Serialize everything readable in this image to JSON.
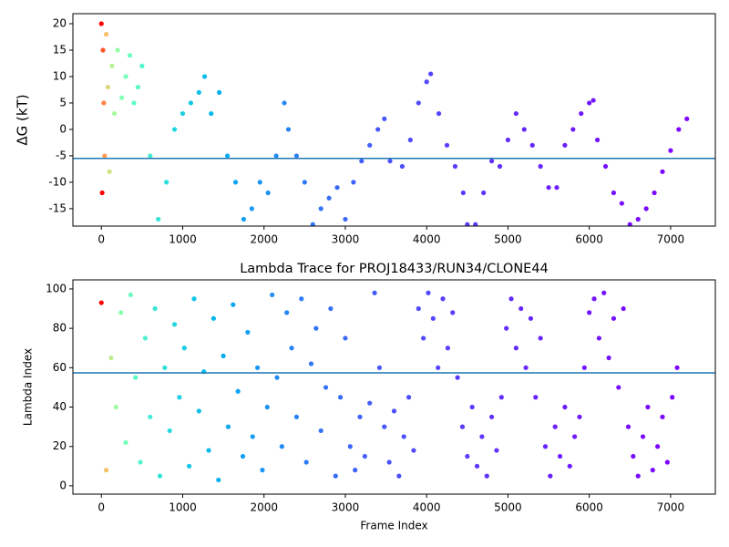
{
  "chart_data": [
    {
      "type": "scatter",
      "ylabel": "ΔG (kT)",
      "colormap": "rainbow_r",
      "color_norm": "log",
      "clim": [
        10,
        7200
      ],
      "xlim": [
        -350,
        7550
      ],
      "ylim": [
        -18.3,
        21.9
      ],
      "xticks": [
        0,
        1000,
        2000,
        3000,
        4000,
        5000,
        6000,
        7000
      ],
      "yticks": [
        -15,
        -10,
        -5,
        0,
        5,
        10,
        15,
        20
      ],
      "hline": -5.5,
      "hline_color": "#1f77b4",
      "x": [
        0,
        10,
        20,
        30,
        40,
        60,
        80,
        100,
        130,
        160,
        200,
        250,
        300,
        350,
        400,
        450,
        500,
        600,
        700,
        800,
        900,
        1000,
        1100,
        1200,
        1270,
        1350,
        1450,
        1550,
        1650,
        1750,
        1850,
        1950,
        2050,
        2150,
        2250,
        2300,
        2400,
        2500,
        2600,
        2700,
        2800,
        2900,
        3000,
        3100,
        3200,
        3300,
        3400,
        3480,
        3550,
        3700,
        3800,
        3900,
        4000,
        4050,
        4150,
        4250,
        4350,
        4450,
        4500,
        4600,
        4700,
        4800,
        4900,
        5000,
        5100,
        5200,
        5300,
        5400,
        5500,
        5600,
        5700,
        5800,
        5900,
        6000,
        6050,
        6100,
        6200,
        6300,
        6400,
        6500,
        6600,
        6700,
        6800,
        6900,
        7000,
        7100,
        7200
      ],
      "y": [
        20,
        -12,
        15,
        5,
        -5,
        18,
        8,
        -8,
        12,
        3,
        15,
        6,
        10,
        14,
        5,
        8,
        12,
        -5,
        -17,
        -10,
        0,
        3,
        5,
        7,
        10,
        3,
        7,
        -5,
        -10,
        -17,
        -15,
        -10,
        -12,
        -5,
        5,
        0,
        -5,
        -10,
        -18,
        -15,
        -13,
        -11,
        -17,
        -10,
        -6,
        -3,
        0,
        2,
        -6,
        -7,
        -2,
        5,
        9,
        10.5,
        3,
        -3,
        -7,
        -12,
        -18,
        -18,
        -12,
        -6,
        -7,
        -2,
        3,
        0,
        -3,
        -7,
        -11,
        -11,
        -3,
        0,
        3,
        5,
        5.5,
        -2,
        -7,
        -12,
        -14,
        -18,
        -17,
        -15,
        -12,
        -8,
        -4,
        0,
        2
      ]
    },
    {
      "type": "scatter",
      "title": "Lambda Trace for PROJ18433/RUN34/CLONE44",
      "xlabel": "Frame Index",
      "ylabel": "Lambda Index",
      "colormap": "rainbow_r",
      "color_norm": "log",
      "clim": [
        10,
        7200
      ],
      "xlim": [
        -350,
        7550
      ],
      "ylim": [
        -4.2,
        104.6
      ],
      "xticks": [
        0,
        1000,
        2000,
        3000,
        4000,
        5000,
        6000,
        7000
      ],
      "yticks": [
        0,
        20,
        40,
        60,
        80,
        100
      ],
      "hline": 57.4,
      "hline_color": "#1f77b4",
      "x": [
        0,
        60,
        120,
        180,
        240,
        300,
        360,
        420,
        480,
        540,
        600,
        660,
        720,
        780,
        840,
        900,
        960,
        1020,
        1080,
        1140,
        1200,
        1260,
        1320,
        1380,
        1440,
        1500,
        1560,
        1620,
        1680,
        1740,
        1800,
        1860,
        1920,
        1980,
        2040,
        2100,
        2160,
        2220,
        2280,
        2340,
        2400,
        2460,
        2520,
        2580,
        2640,
        2700,
        2760,
        2820,
        2880,
        2940,
        3000,
        3060,
        3120,
        3180,
        3240,
        3300,
        3360,
        3420,
        3480,
        3540,
        3600,
        3660,
        3720,
        3780,
        3840,
        3900,
        3960,
        4020,
        4080,
        4140,
        4200,
        4260,
        4320,
        4380,
        4440,
        4500,
        4560,
        4620,
        4680,
        4740,
        4800,
        4860,
        4920,
        4980,
        5040,
        5100,
        5160,
        5220,
        5280,
        5340,
        5400,
        5460,
        5520,
        5580,
        5640,
        5700,
        5760,
        5820,
        5880,
        5940,
        6000,
        6060,
        6120,
        6180,
        6240,
        6300,
        6360,
        6420,
        6480,
        6540,
        6600,
        6660,
        6720,
        6780,
        6840,
        6900,
        6960,
        7020,
        7080
      ],
      "y": [
        93,
        8,
        65,
        40,
        88,
        22,
        97,
        55,
        12,
        75,
        35,
        90,
        5,
        60,
        28,
        82,
        45,
        70,
        10,
        95,
        38,
        58,
        18,
        85,
        3,
        66,
        30,
        92,
        48,
        15,
        78,
        25,
        60,
        8,
        40,
        97,
        55,
        20,
        88,
        70,
        35,
        95,
        12,
        62,
        80,
        28,
        50,
        90,
        5,
        45,
        75,
        20,
        8,
        35,
        15,
        42,
        98,
        60,
        30,
        12,
        38,
        5,
        25,
        45,
        18,
        90,
        75,
        98,
        85,
        60,
        95,
        70,
        88,
        55,
        30,
        15,
        40,
        10,
        25,
        5,
        35,
        18,
        45,
        80,
        95,
        70,
        90,
        60,
        85,
        45,
        75,
        20,
        5,
        30,
        15,
        40,
        10,
        25,
        35,
        60,
        88,
        95,
        75,
        98,
        65,
        85,
        50,
        90,
        30,
        15,
        5,
        25,
        40,
        8,
        20,
        35,
        12,
        45,
        60
      ]
    }
  ]
}
